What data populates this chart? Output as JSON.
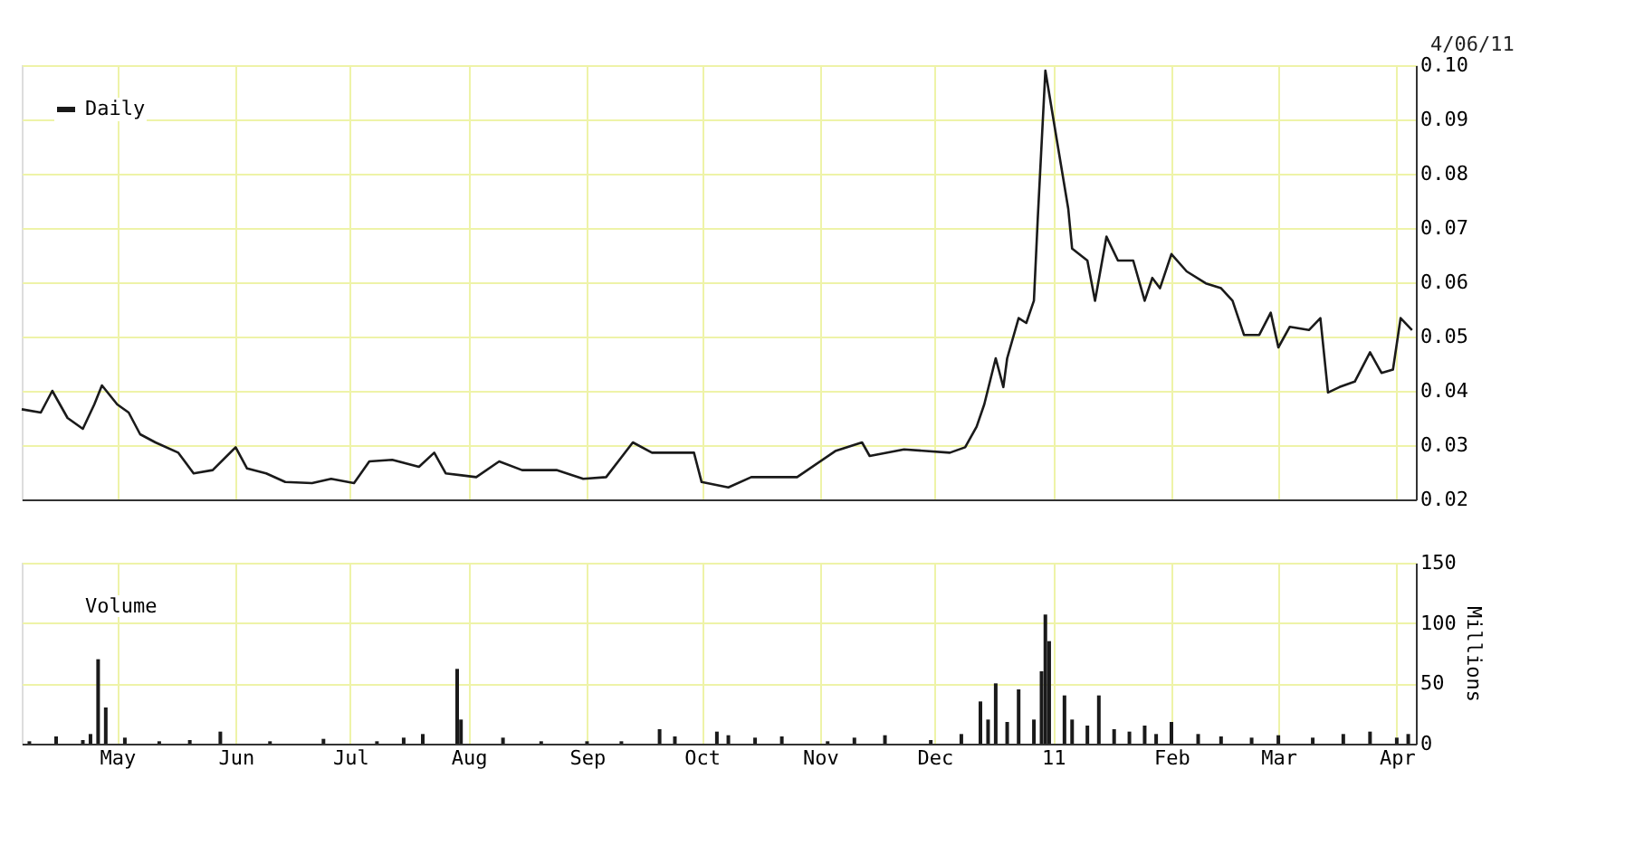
{
  "chart_data": [
    {
      "type": "line",
      "annotations": [
        "4/06/11"
      ],
      "legend": "top left",
      "grid": true,
      "marker": "none",
      "line_style": "solid",
      "tick_labels": "y",
      "xlim": [
        "2010-04-06",
        "2011-04-06"
      ],
      "ylim": [
        0.02,
        0.1
      ],
      "yticks": [
        {
          "value": 0.02,
          "label": "0.02"
        },
        {
          "value": 0.03,
          "label": "0.03"
        },
        {
          "value": 0.04,
          "label": "0.04"
        },
        {
          "value": 0.05,
          "label": "0.05"
        },
        {
          "value": 0.06,
          "label": "0.06"
        },
        {
          "value": 0.07,
          "label": "0.07"
        },
        {
          "value": 0.08,
          "label": "0.08"
        },
        {
          "value": 0.09,
          "label": "0.09"
        },
        {
          "value": 0.1,
          "label": "0.10"
        }
      ],
      "x": [
        "2010-04-06",
        "2010-04-11",
        "2010-04-14",
        "2010-04-18",
        "2010-04-22",
        "2010-04-25",
        "2010-04-27",
        "2010-05-01",
        "2010-05-04",
        "2010-05-07",
        "2010-05-11",
        "2010-05-17",
        "2010-05-21",
        "2010-05-26",
        "2010-06-01",
        "2010-06-04",
        "2010-06-09",
        "2010-06-14",
        "2010-06-21",
        "2010-06-26",
        "2010-07-02",
        "2010-07-06",
        "2010-07-12",
        "2010-07-19",
        "2010-07-23",
        "2010-07-26",
        "2010-08-03",
        "2010-08-09",
        "2010-08-15",
        "2010-08-24",
        "2010-08-31",
        "2010-09-06",
        "2010-09-13",
        "2010-09-18",
        "2010-09-29",
        "2010-10-01",
        "2010-10-08",
        "2010-10-14",
        "2010-10-26",
        "2010-11-05",
        "2010-11-12",
        "2010-11-14",
        "2010-11-23",
        "2010-12-05",
        "2010-12-09",
        "2010-12-12",
        "2010-12-14",
        "2010-12-17",
        "2010-12-19",
        "2010-12-20",
        "2010-12-23",
        "2010-12-25",
        "2010-12-27",
        "2010-12-28",
        "2010-12-30",
        "2011-01-02",
        "2011-01-05",
        "2011-01-06",
        "2011-01-10",
        "2011-01-12",
        "2011-01-15",
        "2011-01-18",
        "2011-01-22",
        "2011-01-25",
        "2011-01-27",
        "2011-01-29",
        "2011-02-01",
        "2011-02-05",
        "2011-02-10",
        "2011-02-14",
        "2011-02-17",
        "2011-02-20",
        "2011-02-24",
        "2011-02-27",
        "2011-03-01",
        "2011-03-04",
        "2011-03-09",
        "2011-03-12",
        "2011-03-14",
        "2011-03-17",
        "2011-03-21",
        "2011-03-25",
        "2011-03-28",
        "2011-03-31",
        "2011-04-02",
        "2011-04-05"
      ],
      "series": [
        {
          "name": "Daily",
          "color": "#1a1a1a",
          "values": [
            0.0366,
            0.036,
            0.04,
            0.035,
            0.033,
            0.0375,
            0.041,
            0.0375,
            0.036,
            0.032,
            0.0305,
            0.0286,
            0.0248,
            0.0254,
            0.0296,
            0.0257,
            0.0248,
            0.0232,
            0.023,
            0.0238,
            0.023,
            0.027,
            0.0273,
            0.026,
            0.0286,
            0.0248,
            0.0241,
            0.027,
            0.0254,
            0.0254,
            0.0238,
            0.0241,
            0.0305,
            0.0286,
            0.0286,
            0.0232,
            0.0222,
            0.0241,
            0.0241,
            0.0289,
            0.0305,
            0.028,
            0.0292,
            0.0286,
            0.0296,
            0.0334,
            0.0375,
            0.046,
            0.0407,
            0.046,
            0.0534,
            0.0525,
            0.0566,
            0.0716,
            0.099,
            0.0862,
            0.0735,
            0.0662,
            0.064,
            0.0566,
            0.0684,
            0.064,
            0.064,
            0.0566,
            0.0608,
            0.0589,
            0.0652,
            0.062,
            0.0598,
            0.0589,
            0.0566,
            0.0503,
            0.0503,
            0.0544,
            0.048,
            0.0518,
            0.0512,
            0.0534,
            0.0397,
            0.0407,
            0.0417,
            0.0471,
            0.0433,
            0.0439,
            0.0534,
            0.0512
          ]
        }
      ]
    },
    {
      "type": "bar",
      "legend": "top left",
      "grid": true,
      "ylabel": "Millions",
      "xlim": [
        "2010-04-06",
        "2011-04-06"
      ],
      "xticks": [
        {
          "value": "2010-05-01",
          "label": "May"
        },
        {
          "value": "2010-06-01",
          "label": "Jun"
        },
        {
          "value": "2010-07-01",
          "label": "Jul"
        },
        {
          "value": "2010-08-01",
          "label": "Aug"
        },
        {
          "value": "2010-09-01",
          "label": "Sep"
        },
        {
          "value": "2010-10-01",
          "label": "Oct"
        },
        {
          "value": "2010-11-01",
          "label": "Nov"
        },
        {
          "value": "2010-12-01",
          "label": "Dec"
        },
        {
          "value": "2011-01-01",
          "label": "11"
        },
        {
          "value": "2011-02-01",
          "label": "Feb"
        },
        {
          "value": "2011-03-01",
          "label": "Mar"
        },
        {
          "value": "2011-04-01",
          "label": "Apr"
        }
      ],
      "ylim": [
        0,
        150
      ],
      "yticks": [
        0,
        50,
        100,
        150
      ],
      "x": [
        "2010-04-08",
        "2010-04-15",
        "2010-04-22",
        "2010-04-24",
        "2010-04-26",
        "2010-04-28",
        "2010-05-03",
        "2010-05-12",
        "2010-05-20",
        "2010-05-28",
        "2010-06-10",
        "2010-06-24",
        "2010-07-08",
        "2010-07-15",
        "2010-07-20",
        "2010-07-29",
        "2010-07-30",
        "2010-08-10",
        "2010-08-20",
        "2010-09-01",
        "2010-09-10",
        "2010-09-20",
        "2010-09-24",
        "2010-10-05",
        "2010-10-08",
        "2010-10-15",
        "2010-10-22",
        "2010-11-03",
        "2010-11-10",
        "2010-11-18",
        "2010-11-30",
        "2010-12-08",
        "2010-12-13",
        "2010-12-15",
        "2010-12-17",
        "2010-12-20",
        "2010-12-23",
        "2010-12-27",
        "2010-12-29",
        "2010-12-30",
        "2010-12-31",
        "2011-01-04",
        "2011-01-06",
        "2011-01-10",
        "2011-01-13",
        "2011-01-17",
        "2011-01-21",
        "2011-01-25",
        "2011-01-28",
        "2011-02-01",
        "2011-02-08",
        "2011-02-14",
        "2011-02-22",
        "2011-03-01",
        "2011-03-10",
        "2011-03-18",
        "2011-03-25",
        "2011-04-01",
        "2011-04-04"
      ],
      "series": [
        {
          "name": "Volume",
          "color": "#1a1a1a",
          "values": [
            2,
            6,
            3,
            8,
            70,
            30,
            5,
            2,
            3,
            10,
            2,
            4,
            2,
            5,
            8,
            62,
            20,
            5,
            2,
            2,
            2,
            12,
            6,
            10,
            7,
            5,
            6,
            2,
            5,
            7,
            3,
            8,
            35,
            20,
            50,
            18,
            45,
            20,
            60,
            107,
            85,
            40,
            20,
            15,
            40,
            12,
            10,
            15,
            8,
            18,
            8,
            6,
            5,
            7,
            5,
            8,
            10,
            5,
            8
          ]
        }
      ]
    }
  ]
}
